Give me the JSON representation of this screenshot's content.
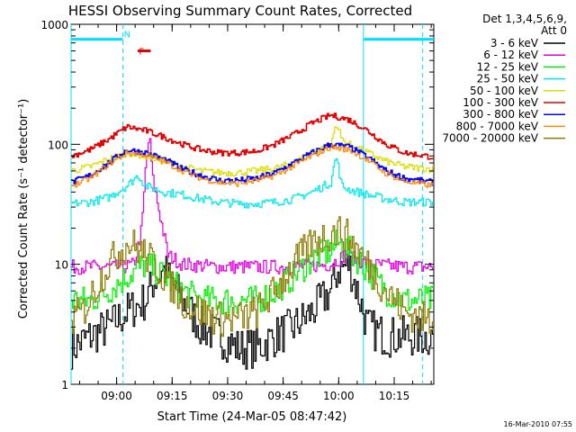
{
  "chart_data": {
    "type": "line",
    "title": "HESSI Observing Summary Count Rates, Corrected",
    "xlabel": "Start Time (24-Mar-05 08:47:42)",
    "ylabel": "Corrected Count Rate (s⁻¹ detector⁻¹)",
    "yscale": "log",
    "ylim": [
      1,
      1000
    ],
    "xlim": [
      "08:47:42",
      "10:25:42"
    ],
    "x_unit": "minutes since 08:47:42",
    "x_ticks": [
      {
        "min": 12.3,
        "label": "09:00"
      },
      {
        "min": 27.3,
        "label": "09:15"
      },
      {
        "min": 42.3,
        "label": "09:30"
      },
      {
        "min": 57.3,
        "label": "09:45"
      },
      {
        "min": 72.3,
        "label": "10:00"
      },
      {
        "min": 87.3,
        "label": "10:15"
      }
    ],
    "y_ticks": [
      {
        "value": 1,
        "label": "1"
      },
      {
        "value": 10,
        "label": "10"
      },
      {
        "value": 100,
        "label": "100"
      },
      {
        "value": 1000,
        "label": "1000"
      }
    ],
    "legend": {
      "header": [
        "Det 1,3,4,5,6,9,",
        "Att 0"
      ],
      "placement": "right"
    },
    "series": [
      {
        "name": "3 - 6 keV",
        "color": "#000000",
        "x": [
          0,
          5,
          10,
          15,
          20,
          22,
          25,
          30,
          35,
          40,
          45,
          50,
          55,
          60,
          65,
          70,
          72,
          75,
          78,
          80,
          85
        ],
        "y": [
          2,
          2.5,
          3,
          4,
          5,
          7,
          9,
          5,
          3,
          2.5,
          2,
          2,
          2.5,
          3,
          4,
          6,
          9,
          10,
          5,
          3,
          2.5
        ]
      },
      {
        "name": "6 - 12 keV",
        "color": "#e000e0",
        "x": [
          0,
          5,
          10,
          14,
          17,
          19,
          20,
          21,
          22,
          24,
          26,
          30,
          40,
          50,
          60,
          70,
          74,
          80,
          90,
          98
        ],
        "y": [
          9.5,
          9.5,
          9.5,
          9.5,
          10,
          20,
          60,
          120,
          50,
          25,
          12,
          10,
          9.5,
          9.5,
          9.5,
          10,
          12,
          10,
          9.5,
          9.5
        ]
      },
      {
        "name": "12 - 25 keV",
        "color": "#00ee00",
        "x": [
          0,
          5,
          10,
          15,
          20,
          25,
          30,
          35,
          40,
          45,
          50,
          55,
          60,
          65,
          70,
          72,
          75,
          80,
          85,
          90,
          98
        ],
        "y": [
          5,
          5,
          6,
          8,
          10,
          8,
          6,
          5,
          5,
          5,
          5,
          6,
          8,
          11,
          13,
          15,
          13,
          9,
          6,
          5,
          5
        ]
      },
      {
        "name": "25 - 50 keV",
        "color": "#00e8ee",
        "x": [
          0,
          5,
          10,
          15,
          18,
          20,
          25,
          30,
          35,
          40,
          45,
          50,
          55,
          60,
          65,
          70,
          71.5,
          73,
          75,
          80,
          85,
          90,
          98
        ],
        "y": [
          32,
          33,
          36,
          45,
          55,
          45,
          40,
          38,
          35,
          33,
          32,
          32,
          33,
          35,
          40,
          48,
          80,
          45,
          42,
          38,
          35,
          33,
          33
        ]
      },
      {
        "name": "50 - 100 keV",
        "color": "#dddd00",
        "x": [
          0,
          5,
          10,
          15,
          20,
          25,
          30,
          35,
          40,
          45,
          50,
          55,
          60,
          65,
          70,
          71.5,
          73,
          75,
          80,
          85,
          90,
          98
        ],
        "y": [
          60,
          65,
          75,
          85,
          80,
          72,
          65,
          60,
          58,
          58,
          60,
          63,
          70,
          85,
          100,
          150,
          110,
          100,
          85,
          72,
          65,
          62
        ]
      },
      {
        "name": "100 - 300 keV",
        "color": "#e00000",
        "x": [
          0,
          5,
          10,
          15,
          20,
          25,
          30,
          35,
          40,
          45,
          50,
          55,
          60,
          65,
          70,
          75,
          80,
          85,
          90,
          98
        ],
        "y": [
          80,
          90,
          110,
          140,
          130,
          115,
          100,
          90,
          85,
          85,
          88,
          100,
          120,
          150,
          175,
          160,
          130,
          100,
          85,
          78
        ]
      },
      {
        "name": "300 - 800 keV",
        "color": "#0000ff",
        "x": [
          0,
          5,
          10,
          15,
          20,
          25,
          30,
          35,
          40,
          45,
          50,
          55,
          60,
          65,
          70,
          75,
          80,
          85,
          90,
          98
        ],
        "y": [
          48,
          55,
          70,
          90,
          85,
          75,
          62,
          55,
          50,
          50,
          52,
          58,
          70,
          85,
          100,
          95,
          78,
          60,
          52,
          48
        ]
      },
      {
        "name": "800 - 7000 keV",
        "color": "#ff8800",
        "x": [
          0,
          5,
          10,
          15,
          20,
          25,
          30,
          35,
          40,
          45,
          50,
          55,
          60,
          65,
          70,
          75,
          80,
          85,
          90,
          98
        ],
        "y": [
          45,
          52,
          68,
          85,
          82,
          72,
          60,
          52,
          48,
          47,
          50,
          55,
          66,
          80,
          95,
          90,
          74,
          57,
          49,
          45
        ]
      },
      {
        "name": "7000 - 20000 keV",
        "color": "#8b7a00",
        "x": [
          0,
          3,
          6,
          10,
          13,
          16,
          20,
          25,
          30,
          35,
          40,
          45,
          50,
          55,
          60,
          65,
          70,
          73,
          76,
          80,
          85,
          90,
          95,
          98
        ],
        "y": [
          3.5,
          4,
          6,
          10,
          13,
          15,
          12,
          8,
          5,
          4,
          3.5,
          3.5,
          4,
          6,
          10,
          15,
          18,
          19,
          15,
          10,
          6,
          4,
          3.5,
          3.5
        ]
      }
    ],
    "annotations": [
      {
        "type": "bar",
        "color": "#00e0ff",
        "label": "N",
        "x_ranges": [
          [
            0,
            14
          ],
          [
            79,
            98
          ]
        ],
        "value": 750
      },
      {
        "type": "bar",
        "color": "#e00000",
        "label": "F",
        "x_ranges": [
          [
            18,
            21.5
          ]
        ],
        "value": 600
      },
      {
        "type": "vline",
        "color": "#00e0ff",
        "x": 0,
        "style": "solid"
      },
      {
        "type": "vline",
        "color": "#00e0ff",
        "x": 14,
        "style": "dashed"
      },
      {
        "type": "vline",
        "color": "#00e0ff",
        "x": 79,
        "style": "solid"
      },
      {
        "type": "vline",
        "color": "#00e0ff",
        "x": 95,
        "style": "dashed"
      }
    ],
    "footer": "16-Mar-2010 07:55"
  }
}
